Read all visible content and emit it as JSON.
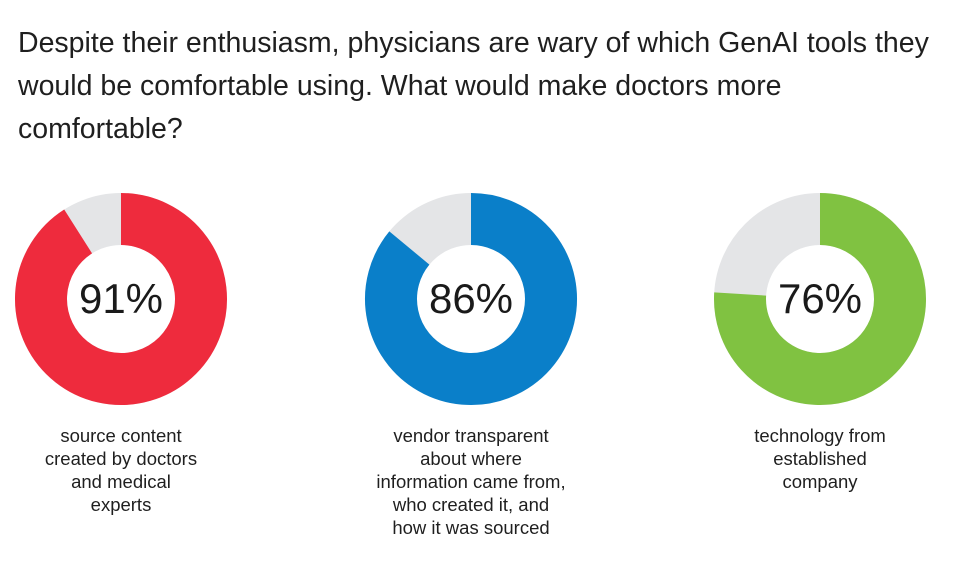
{
  "title": "Despite their enthusiasm, physicians are wary of which GenAI tools they would be comfortable using. What would make doctors more comfortable?",
  "colors": {
    "track": "#e4e5e7"
  },
  "chart_data": [
    {
      "type": "pie",
      "value": 91,
      "display": "91%",
      "caption_lines": [
        "source content",
        "created by doctors",
        "and medical",
        "experts"
      ],
      "color": "#ee2b3d"
    },
    {
      "type": "pie",
      "value": 86,
      "display": "86%",
      "caption_lines": [
        "vendor transparent",
        "about where",
        "information came from,",
        "who created it, and",
        "how it was sourced"
      ],
      "color": "#0a7fc9"
    },
    {
      "type": "pie",
      "value": 76,
      "display": "76%",
      "caption_lines": [
        "technology from",
        "established",
        "company"
      ],
      "color": "#80c241"
    }
  ]
}
